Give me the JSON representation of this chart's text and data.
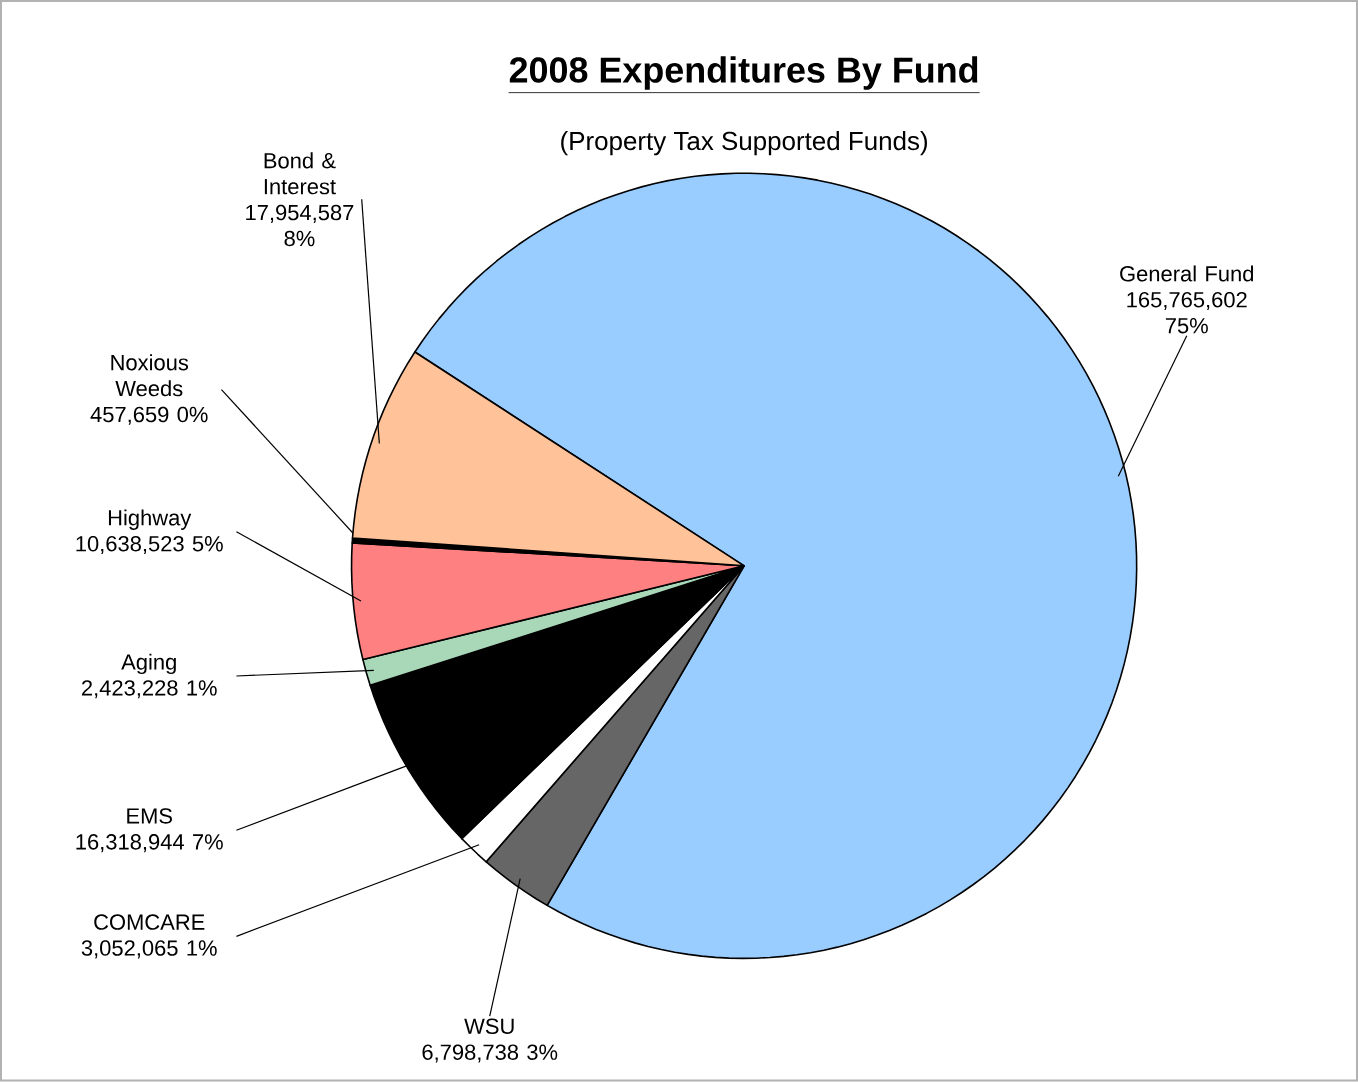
{
  "chart_data": {
    "type": "pie",
    "title": "2008 Expenditures By Fund",
    "subtitle": "(Property Tax Supported Funds)",
    "categories": [
      "General Fund",
      "WSU",
      "COMCARE",
      "EMS",
      "Aging",
      "Highway",
      "Noxious Weeds",
      "Bond & Interest"
    ],
    "values": [
      165765602,
      6798738,
      3052065,
      16318944,
      2423228,
      10638523,
      457659,
      17954587
    ],
    "value_labels": [
      "165,765,602 75%",
      "6,798,738 3%",
      "3,052,065 1%",
      "16,318,944 7%",
      "2,423,228 1%",
      "10,638,523 5%",
      "457,659 0%",
      "17,954,587 8%"
    ],
    "colors": [
      "#99ccff",
      "#666666",
      "#ffffff",
      "#000000",
      "#a8d8b8",
      "#ff8080",
      "#000000",
      "#ffc299"
    ]
  }
}
